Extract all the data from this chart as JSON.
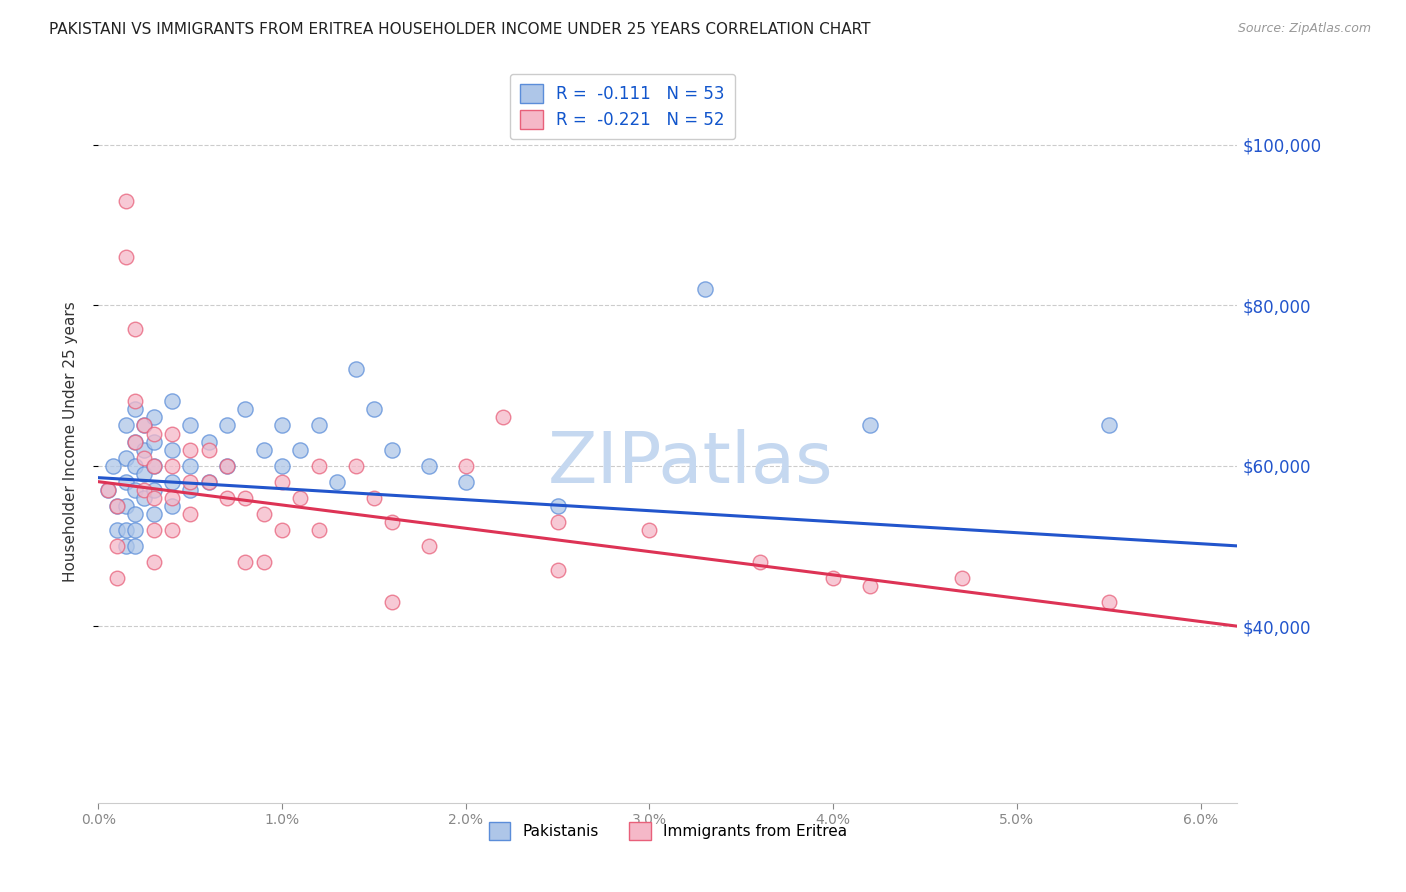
{
  "title": "PAKISTANI VS IMMIGRANTS FROM ERITREA HOUSEHOLDER INCOME UNDER 25 YEARS CORRELATION CHART",
  "source": "Source: ZipAtlas.com",
  "ylabel": "Householder Income Under 25 years",
  "right_ytick_values": [
    100000,
    80000,
    60000,
    40000
  ],
  "y_min": 18000,
  "y_max": 108000,
  "x_min": 0.0,
  "x_max": 0.062,
  "legend_blue_R": "-0.111",
  "legend_blue_N": "53",
  "legend_pink_R": "-0.221",
  "legend_pink_N": "52",
  "legend_blue_label": "Pakistanis",
  "legend_pink_label": "Immigrants from Eritrea",
  "blue_fill": "#aec6e8",
  "pink_fill": "#f5b8c8",
  "blue_edge": "#5b8dd9",
  "pink_edge": "#e8607a",
  "blue_line_color": "#2255cc",
  "pink_line_color": "#dd3355",
  "blue_scatter": [
    [
      0.0005,
      57000
    ],
    [
      0.0008,
      60000
    ],
    [
      0.001,
      55000
    ],
    [
      0.001,
      52000
    ],
    [
      0.0015,
      65000
    ],
    [
      0.0015,
      61000
    ],
    [
      0.0015,
      58000
    ],
    [
      0.0015,
      55000
    ],
    [
      0.0015,
      52000
    ],
    [
      0.0015,
      50000
    ],
    [
      0.002,
      67000
    ],
    [
      0.002,
      63000
    ],
    [
      0.002,
      60000
    ],
    [
      0.002,
      57000
    ],
    [
      0.002,
      54000
    ],
    [
      0.002,
      52000
    ],
    [
      0.002,
      50000
    ],
    [
      0.0025,
      65000
    ],
    [
      0.0025,
      62000
    ],
    [
      0.0025,
      59000
    ],
    [
      0.0025,
      56000
    ],
    [
      0.003,
      66000
    ],
    [
      0.003,
      63000
    ],
    [
      0.003,
      60000
    ],
    [
      0.003,
      57000
    ],
    [
      0.003,
      54000
    ],
    [
      0.004,
      68000
    ],
    [
      0.004,
      62000
    ],
    [
      0.004,
      58000
    ],
    [
      0.004,
      55000
    ],
    [
      0.005,
      65000
    ],
    [
      0.005,
      60000
    ],
    [
      0.005,
      57000
    ],
    [
      0.006,
      63000
    ],
    [
      0.006,
      58000
    ],
    [
      0.007,
      65000
    ],
    [
      0.007,
      60000
    ],
    [
      0.008,
      67000
    ],
    [
      0.009,
      62000
    ],
    [
      0.01,
      65000
    ],
    [
      0.01,
      60000
    ],
    [
      0.011,
      62000
    ],
    [
      0.012,
      65000
    ],
    [
      0.013,
      58000
    ],
    [
      0.014,
      72000
    ],
    [
      0.015,
      67000
    ],
    [
      0.016,
      62000
    ],
    [
      0.018,
      60000
    ],
    [
      0.02,
      58000
    ],
    [
      0.025,
      55000
    ],
    [
      0.033,
      82000
    ],
    [
      0.042,
      65000
    ],
    [
      0.055,
      65000
    ]
  ],
  "pink_scatter": [
    [
      0.0005,
      57000
    ],
    [
      0.001,
      55000
    ],
    [
      0.001,
      50000
    ],
    [
      0.001,
      46000
    ],
    [
      0.0015,
      93000
    ],
    [
      0.0015,
      86000
    ],
    [
      0.002,
      77000
    ],
    [
      0.002,
      68000
    ],
    [
      0.002,
      63000
    ],
    [
      0.0025,
      65000
    ],
    [
      0.0025,
      61000
    ],
    [
      0.0025,
      57000
    ],
    [
      0.003,
      64000
    ],
    [
      0.003,
      60000
    ],
    [
      0.003,
      56000
    ],
    [
      0.003,
      52000
    ],
    [
      0.003,
      48000
    ],
    [
      0.004,
      64000
    ],
    [
      0.004,
      60000
    ],
    [
      0.004,
      56000
    ],
    [
      0.004,
      52000
    ],
    [
      0.005,
      62000
    ],
    [
      0.005,
      58000
    ],
    [
      0.005,
      54000
    ],
    [
      0.006,
      62000
    ],
    [
      0.006,
      58000
    ],
    [
      0.007,
      60000
    ],
    [
      0.007,
      56000
    ],
    [
      0.008,
      56000
    ],
    [
      0.008,
      48000
    ],
    [
      0.009,
      54000
    ],
    [
      0.009,
      48000
    ],
    [
      0.01,
      58000
    ],
    [
      0.01,
      52000
    ],
    [
      0.011,
      56000
    ],
    [
      0.012,
      60000
    ],
    [
      0.012,
      52000
    ],
    [
      0.014,
      60000
    ],
    [
      0.015,
      56000
    ],
    [
      0.016,
      53000
    ],
    [
      0.016,
      43000
    ],
    [
      0.018,
      50000
    ],
    [
      0.02,
      60000
    ],
    [
      0.022,
      66000
    ],
    [
      0.025,
      53000
    ],
    [
      0.025,
      47000
    ],
    [
      0.03,
      52000
    ],
    [
      0.036,
      48000
    ],
    [
      0.04,
      46000
    ],
    [
      0.042,
      45000
    ],
    [
      0.047,
      46000
    ],
    [
      0.055,
      43000
    ]
  ],
  "blue_dot_size": 120,
  "pink_dot_size": 110,
  "blue_trendline": [
    0.0,
    58500,
    0.062,
    50000
  ],
  "pink_trendline": [
    0.0,
    58000,
    0.062,
    40000
  ],
  "watermark": "ZIPatlas",
  "watermark_color": "#c5d8f0",
  "background_color": "#ffffff"
}
